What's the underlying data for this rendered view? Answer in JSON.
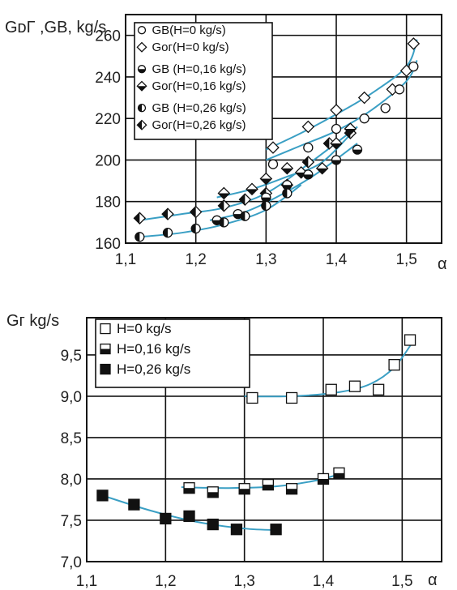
{
  "chart_data": [
    {
      "type": "scatter",
      "title": "",
      "ylabel": "GᴅГ ,GВ, kg/s",
      "xlabel": "α",
      "xlim": [
        1.1,
        1.55
      ],
      "ylim": [
        160,
        270
      ],
      "x_ticks": [
        1.1,
        1.2,
        1.3,
        1.4,
        1.5
      ],
      "x_tick_labels": [
        "1,1",
        "1,2",
        "1,3",
        "1,4",
        "1,5"
      ],
      "y_ticks": [
        160,
        180,
        200,
        220,
        240,
        260
      ],
      "y_tick_labels": [
        "160",
        "180",
        "200",
        "220",
        "240",
        "260"
      ],
      "grid": true,
      "legend_placement": "top-left",
      "legend": [
        {
          "sym": "GВ",
          "text": "(H=0 kg/s)",
          "marker": "circle-open"
        },
        {
          "sym": "Gог",
          "text": "(H=0 kg/s)",
          "marker": "diamond-open"
        },
        {
          "sym": "GВ",
          "text": " (H=0,16 kg/s)",
          "marker": "circle-half"
        },
        {
          "sym": "Gог",
          "text": "(H=0,16 kg/s)",
          "marker": "diamond-half"
        },
        {
          "sym": "GВ",
          "text": " (H=0,26 kg/s)",
          "marker": "circle-lefthalf"
        },
        {
          "sym": "Gог",
          "text": "(H=0,26 kg/s)",
          "marker": "diamond-lefthalf"
        }
      ],
      "series": [
        {
          "marker": "diamond-open",
          "x": [
            1.31,
            1.36,
            1.4,
            1.44,
            1.48,
            1.5,
            1.51
          ],
          "y": [
            206,
            216,
            224,
            230,
            234,
            243,
            256
          ],
          "fit": [
            [
              1.3,
              205
            ],
            [
              1.35,
              213
            ],
            [
              1.4,
              222
            ],
            [
              1.45,
              232
            ],
            [
              1.5,
              245
            ],
            [
              1.515,
              258
            ]
          ]
        },
        {
          "marker": "circle-open",
          "x": [
            1.31,
            1.36,
            1.4,
            1.44,
            1.47,
            1.49,
            1.51
          ],
          "y": [
            198,
            206,
            215,
            220,
            225,
            234,
            245
          ],
          "fit": [
            [
              1.3,
              200
            ],
            [
              1.35,
              207
            ],
            [
              1.4,
              214
            ],
            [
              1.45,
              224
            ],
            [
              1.5,
              238
            ],
            [
              1.515,
              248
            ]
          ]
        },
        {
          "marker": "diamond-lefthalf",
          "x": [
            1.12,
            1.16,
            1.2,
            1.24,
            1.27,
            1.3,
            1.33,
            1.36,
            1.39,
            1.42
          ],
          "y": [
            172,
            174,
            175,
            178,
            181,
            184,
            188,
            199,
            208,
            213
          ],
          "fit": [
            [
              1.12,
              171
            ],
            [
              1.18,
              174
            ],
            [
              1.24,
              177
            ],
            [
              1.3,
              184
            ],
            [
              1.36,
              198
            ],
            [
              1.43,
              216
            ]
          ]
        },
        {
          "marker": "diamond-half",
          "x": [
            1.24,
            1.28,
            1.3,
            1.33,
            1.35,
            1.38,
            1.4,
            1.42
          ],
          "y": [
            184,
            186,
            191,
            196,
            194,
            196,
            208,
            215
          ],
          "fit": [
            [
              1.23,
              182
            ],
            [
              1.28,
              186
            ],
            [
              1.33,
              192
            ],
            [
              1.38,
              199
            ],
            [
              1.43,
              216
            ]
          ]
        },
        {
          "marker": "circle-half",
          "x": [
            1.23,
            1.26,
            1.3,
            1.33,
            1.36,
            1.4,
            1.43
          ],
          "y": [
            171,
            174,
            182,
            188,
            193,
            200,
            205
          ],
          "fit": [
            [
              1.22,
              171
            ],
            [
              1.27,
              175
            ],
            [
              1.32,
              183
            ],
            [
              1.37,
              193
            ],
            [
              1.43,
              208
            ]
          ]
        },
        {
          "marker": "circle-lefthalf",
          "x": [
            1.12,
            1.16,
            1.2,
            1.24,
            1.27,
            1.3,
            1.33
          ],
          "y": [
            163,
            165,
            167,
            170,
            173,
            178,
            184
          ],
          "fit": [
            [
              1.12,
              163
            ],
            [
              1.18,
              165
            ],
            [
              1.24,
              169
            ],
            [
              1.3,
              176
            ],
            [
              1.35,
              188
            ]
          ]
        }
      ]
    },
    {
      "type": "scatter",
      "title": "",
      "ylabel": "Gг  kg/s",
      "xlabel": "α",
      "xlim": [
        1.1,
        1.55
      ],
      "ylim": [
        7.0,
        9.95
      ],
      "x_ticks": [
        1.1,
        1.2,
        1.3,
        1.4,
        1.5
      ],
      "x_tick_labels": [
        "1,1",
        "1,2",
        "1,3",
        "1,4",
        "1,5"
      ],
      "y_ticks": [
        7.0,
        7.5,
        8.0,
        8.5,
        9.0,
        9.5
      ],
      "y_tick_labels": [
        "7,0",
        "7,5",
        "8,0",
        "8,5",
        "9,0",
        "9,5"
      ],
      "grid": true,
      "legend_placement": "top-left",
      "legend": [
        {
          "text": "H=0  kg/s",
          "marker": "square-open"
        },
        {
          "text": "H=0,16 kg/s",
          "marker": "square-half"
        },
        {
          "text": "H=0,26 kg/s",
          "marker": "square-filled"
        }
      ],
      "series": [
        {
          "marker": "square-open",
          "x": [
            1.31,
            1.36,
            1.41,
            1.44,
            1.47,
            1.49,
            1.51
          ],
          "y": [
            8.98,
            8.98,
            9.08,
            9.12,
            9.08,
            9.38,
            9.68
          ],
          "fit": [
            [
              1.3,
              9.0
            ],
            [
              1.36,
              9.0
            ],
            [
              1.42,
              9.05
            ],
            [
              1.46,
              9.15
            ],
            [
              1.49,
              9.35
            ],
            [
              1.515,
              9.68
            ]
          ]
        },
        {
          "marker": "square-half",
          "x": [
            1.23,
            1.26,
            1.3,
            1.33,
            1.36,
            1.4,
            1.42
          ],
          "y": [
            7.89,
            7.84,
            7.88,
            7.93,
            7.88,
            8.0,
            8.07
          ],
          "fit": [
            [
              1.22,
              7.9
            ],
            [
              1.28,
              7.89
            ],
            [
              1.34,
              7.91
            ],
            [
              1.39,
              7.98
            ],
            [
              1.425,
              8.07
            ]
          ]
        },
        {
          "marker": "square-filled",
          "x": [
            1.12,
            1.16,
            1.2,
            1.23,
            1.26,
            1.29,
            1.34
          ],
          "y": [
            7.8,
            7.69,
            7.52,
            7.55,
            7.45,
            7.39,
            7.39
          ],
          "fit": [
            [
              1.12,
              7.8
            ],
            [
              1.18,
              7.62
            ],
            [
              1.24,
              7.48
            ],
            [
              1.3,
              7.4
            ],
            [
              1.345,
              7.38
            ]
          ]
        }
      ]
    }
  ]
}
